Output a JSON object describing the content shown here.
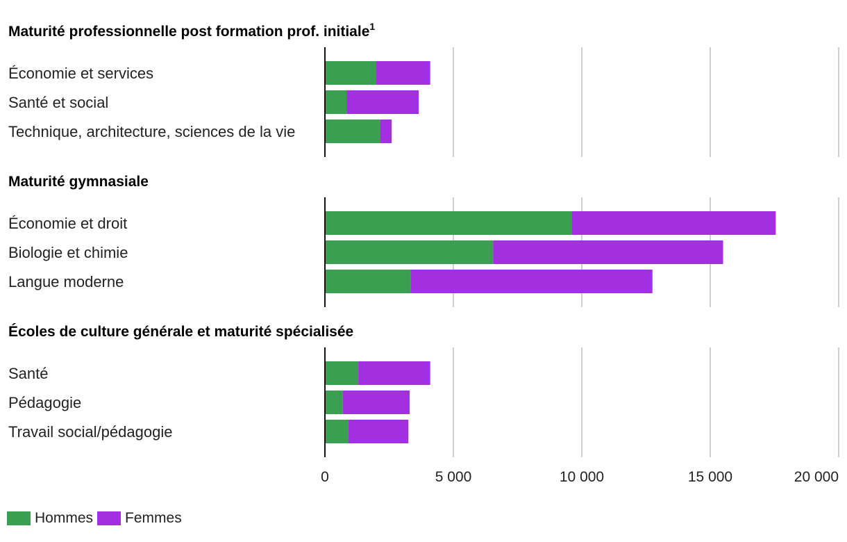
{
  "chart_data": {
    "type": "bar",
    "orientation": "horizontal",
    "stacked": true,
    "title": "",
    "xlabel": "",
    "ylabel": "",
    "xlim": [
      0,
      20000
    ],
    "ticks": [
      0,
      5000,
      10000,
      15000,
      20000
    ],
    "tick_labels": [
      "0",
      "5 000",
      "10 000",
      "15 000",
      "20 000"
    ],
    "grid": "vertical",
    "legend_position": "bottom-left",
    "series": [
      {
        "name": "Hommes",
        "color": "#3a9f51"
      },
      {
        "name": "Femmes",
        "color": "#a22fe0"
      }
    ],
    "groups": [
      {
        "title": "Maturité professionnelle post formation prof. initiale",
        "note": "1",
        "categories": [
          "Économie et services",
          "Santé et social",
          "Technique, architecture, sciences de la vie"
        ],
        "values": {
          "Hommes": [
            2000,
            850,
            2150
          ],
          "Femmes": [
            2100,
            2800,
            450
          ]
        }
      },
      {
        "title": "Maturité gymnasiale",
        "note": "",
        "categories": [
          "Économie et droit",
          "Biologie et chimie",
          "Langue moderne"
        ],
        "values": {
          "Hommes": [
            9600,
            6550,
            3350
          ],
          "Femmes": [
            7950,
            8950,
            9400
          ]
        }
      },
      {
        "title": "Écoles de culture générale et maturité spécialisée",
        "note": "",
        "categories": [
          "Santé",
          "Pédagogie",
          "Travail social/pédagogie"
        ],
        "values": {
          "Hommes": [
            1300,
            700,
            900
          ],
          "Femmes": [
            2800,
            2600,
            2350
          ]
        }
      }
    ]
  }
}
